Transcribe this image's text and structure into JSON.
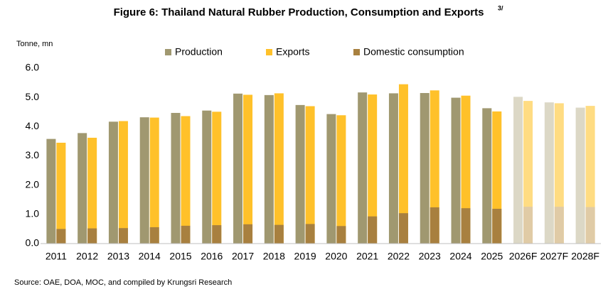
{
  "chart_data": {
    "type": "bar",
    "title": "Figure 6: Thailand Natural Rubber Production, Consumption and Exports",
    "title_superscript": "3/",
    "y_label": "Tonne, mn",
    "source": "Source: OAE, DOA, MOC, and compiled by Krungsri Research",
    "categories": [
      "2011",
      "2012",
      "2013",
      "2014",
      "2015",
      "2016",
      "2017",
      "2018",
      "2019",
      "2020",
      "2021",
      "2022",
      "2023",
      "2024",
      "2025",
      "2026F",
      "2027F",
      "2028F"
    ],
    "forecast": [
      false,
      false,
      false,
      false,
      false,
      false,
      false,
      false,
      false,
      false,
      false,
      false,
      false,
      false,
      false,
      true,
      true,
      true
    ],
    "series": [
      {
        "name": "Production",
        "color": "#a09870",
        "forecast_color": "#dcd8c6",
        "values": [
          3.58,
          3.78,
          4.17,
          4.32,
          4.47,
          4.55,
          5.13,
          5.08,
          4.74,
          4.43,
          5.17,
          5.14,
          5.15,
          4.99,
          4.63,
          5.02,
          4.83,
          4.65
        ]
      },
      {
        "name": "Exports",
        "color": "#ffc12a",
        "forecast_color": "#ffdc82",
        "values": [
          3.45,
          3.62,
          4.19,
          4.31,
          4.36,
          4.51,
          5.09,
          5.14,
          4.7,
          4.39,
          5.1,
          5.45,
          5.24,
          5.06,
          4.52,
          4.88,
          4.8,
          4.71
        ]
      },
      {
        "name": "Domestic consumption",
        "color": "#a8803f",
        "forecast_color": "#e0cba6",
        "values": [
          0.5,
          0.52,
          0.53,
          0.56,
          0.61,
          0.63,
          0.66,
          0.64,
          0.67,
          0.6,
          0.93,
          1.04,
          1.24,
          1.21,
          1.19,
          1.26,
          1.26,
          1.25
        ]
      }
    ],
    "ylim": [
      0,
      6
    ],
    "yticks": [
      {
        "value": 0,
        "label": "0.0"
      },
      {
        "value": 1,
        "label": "1.0"
      },
      {
        "value": 2,
        "label": "2.0"
      },
      {
        "value": 3,
        "label": "3.0"
      },
      {
        "value": 4,
        "label": "4.0"
      },
      {
        "value": 5,
        "label": "5.0"
      },
      {
        "value": 6,
        "label": "6.0"
      }
    ],
    "grid": false
  }
}
